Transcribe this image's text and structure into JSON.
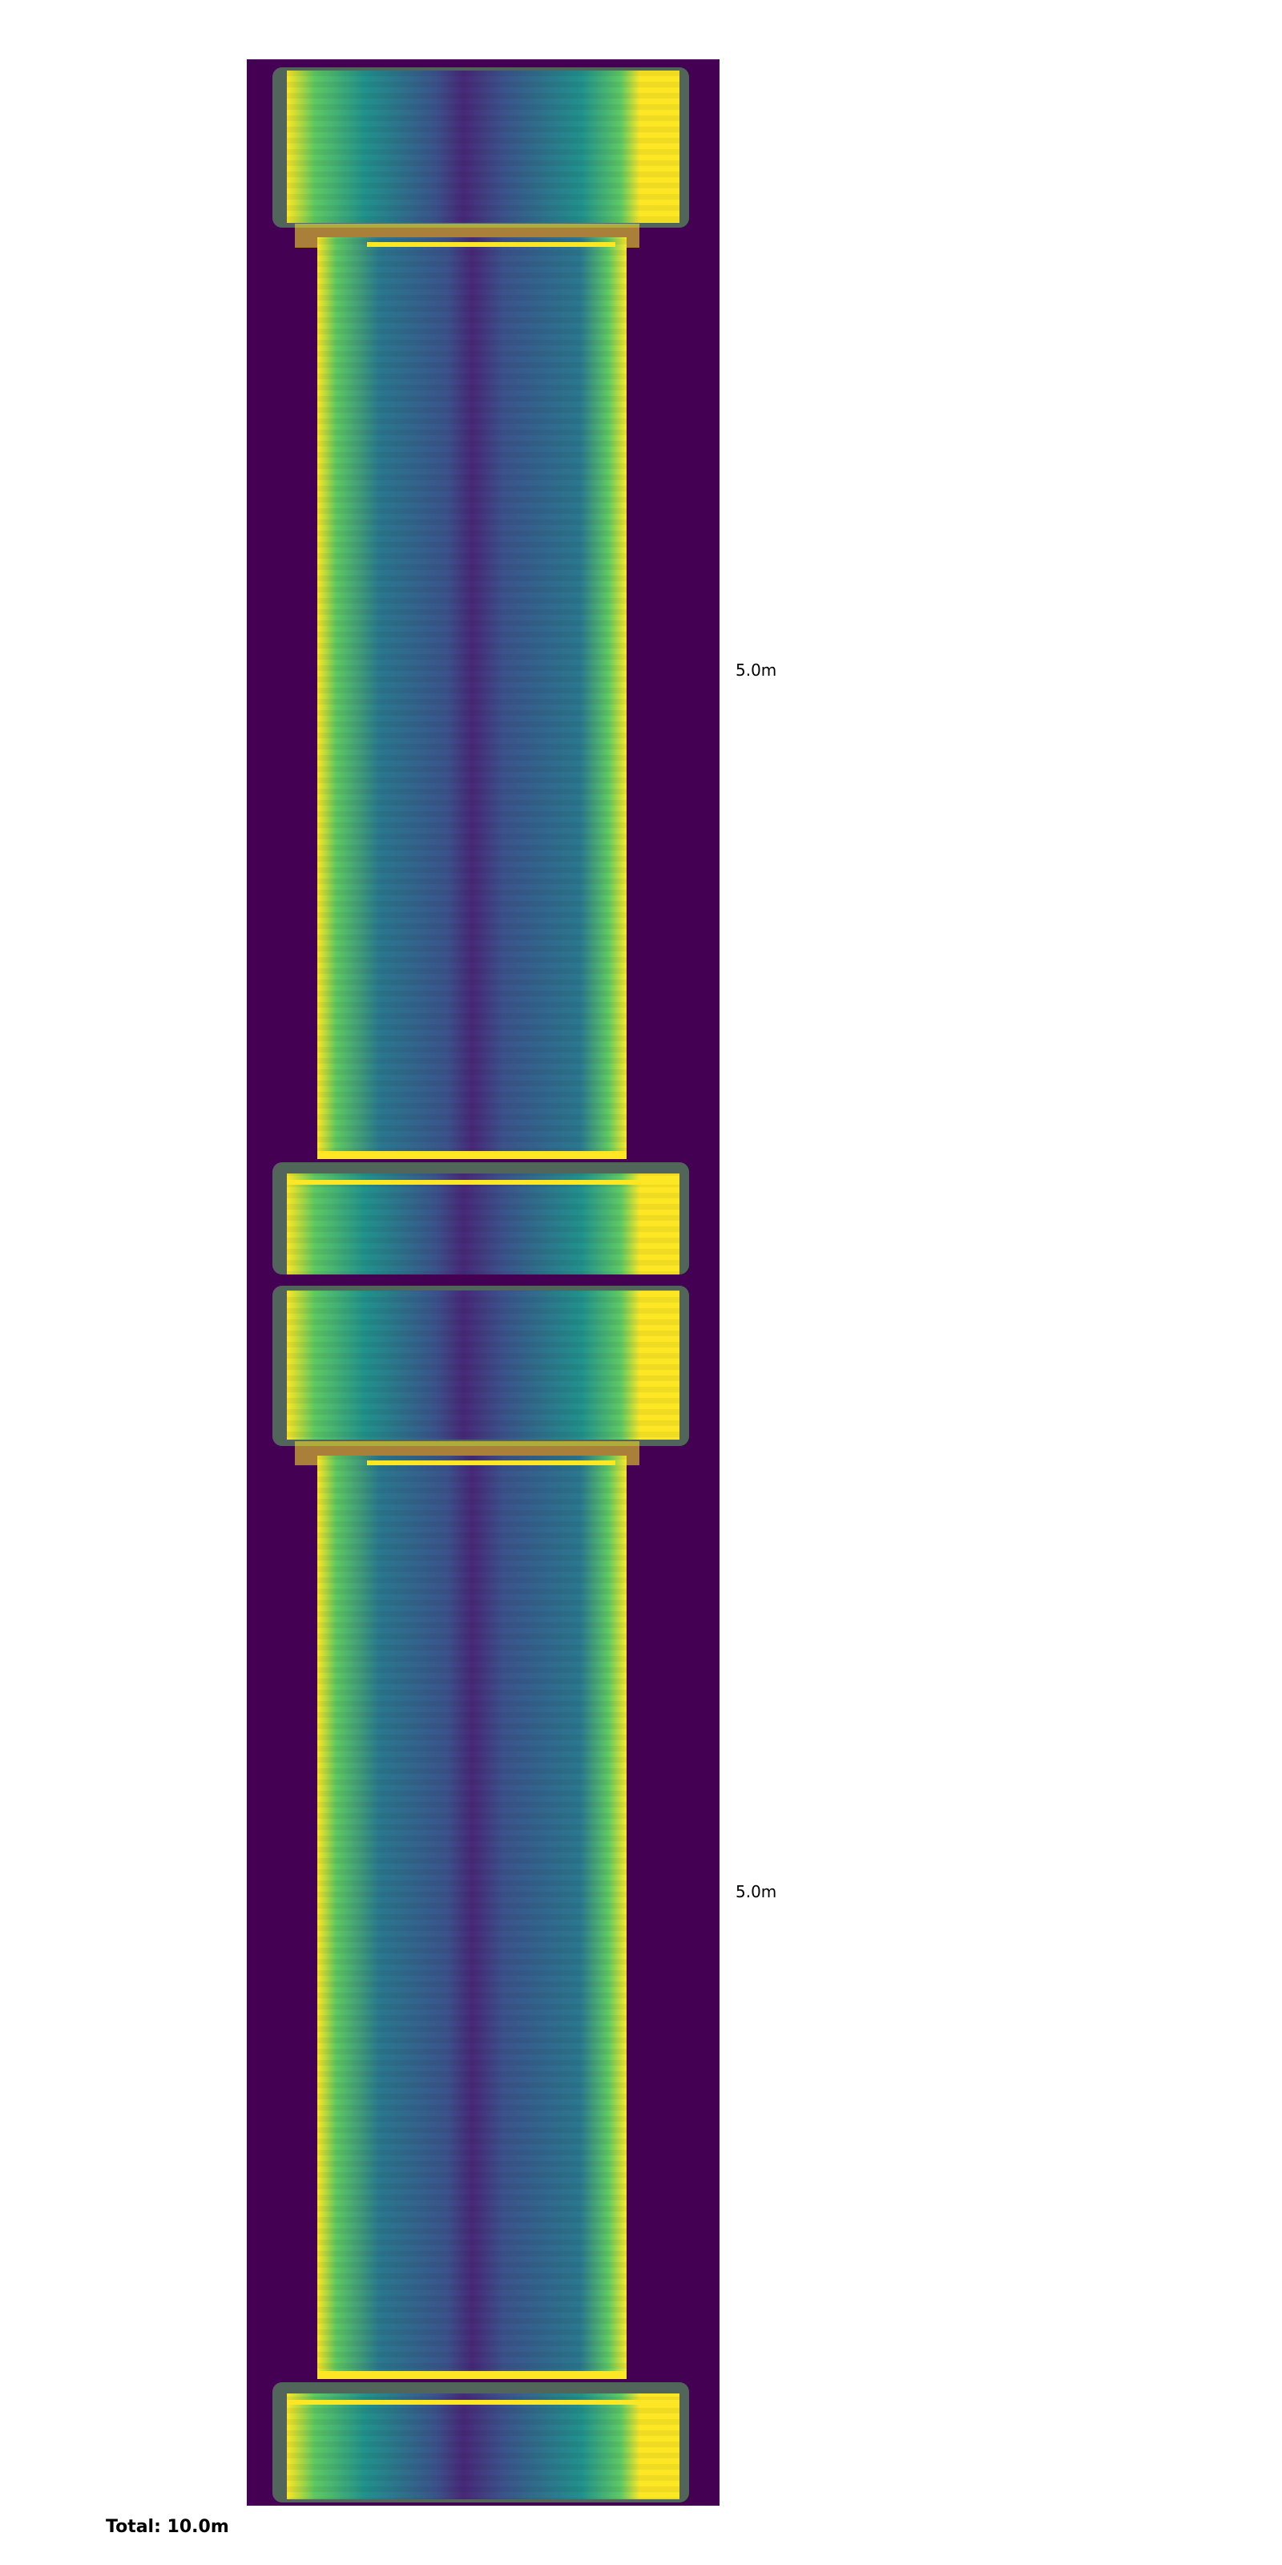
{
  "segments": [
    {
      "length_label": "5.0m"
    },
    {
      "length_label": "5.0m"
    }
  ],
  "total_label": "Total: 10.0m",
  "colors": {
    "background": "#440154",
    "dark": "#46327e",
    "mid": "#2a788e",
    "teal": "#21918c",
    "green": "#5ec962",
    "bright": "#fde725"
  }
}
